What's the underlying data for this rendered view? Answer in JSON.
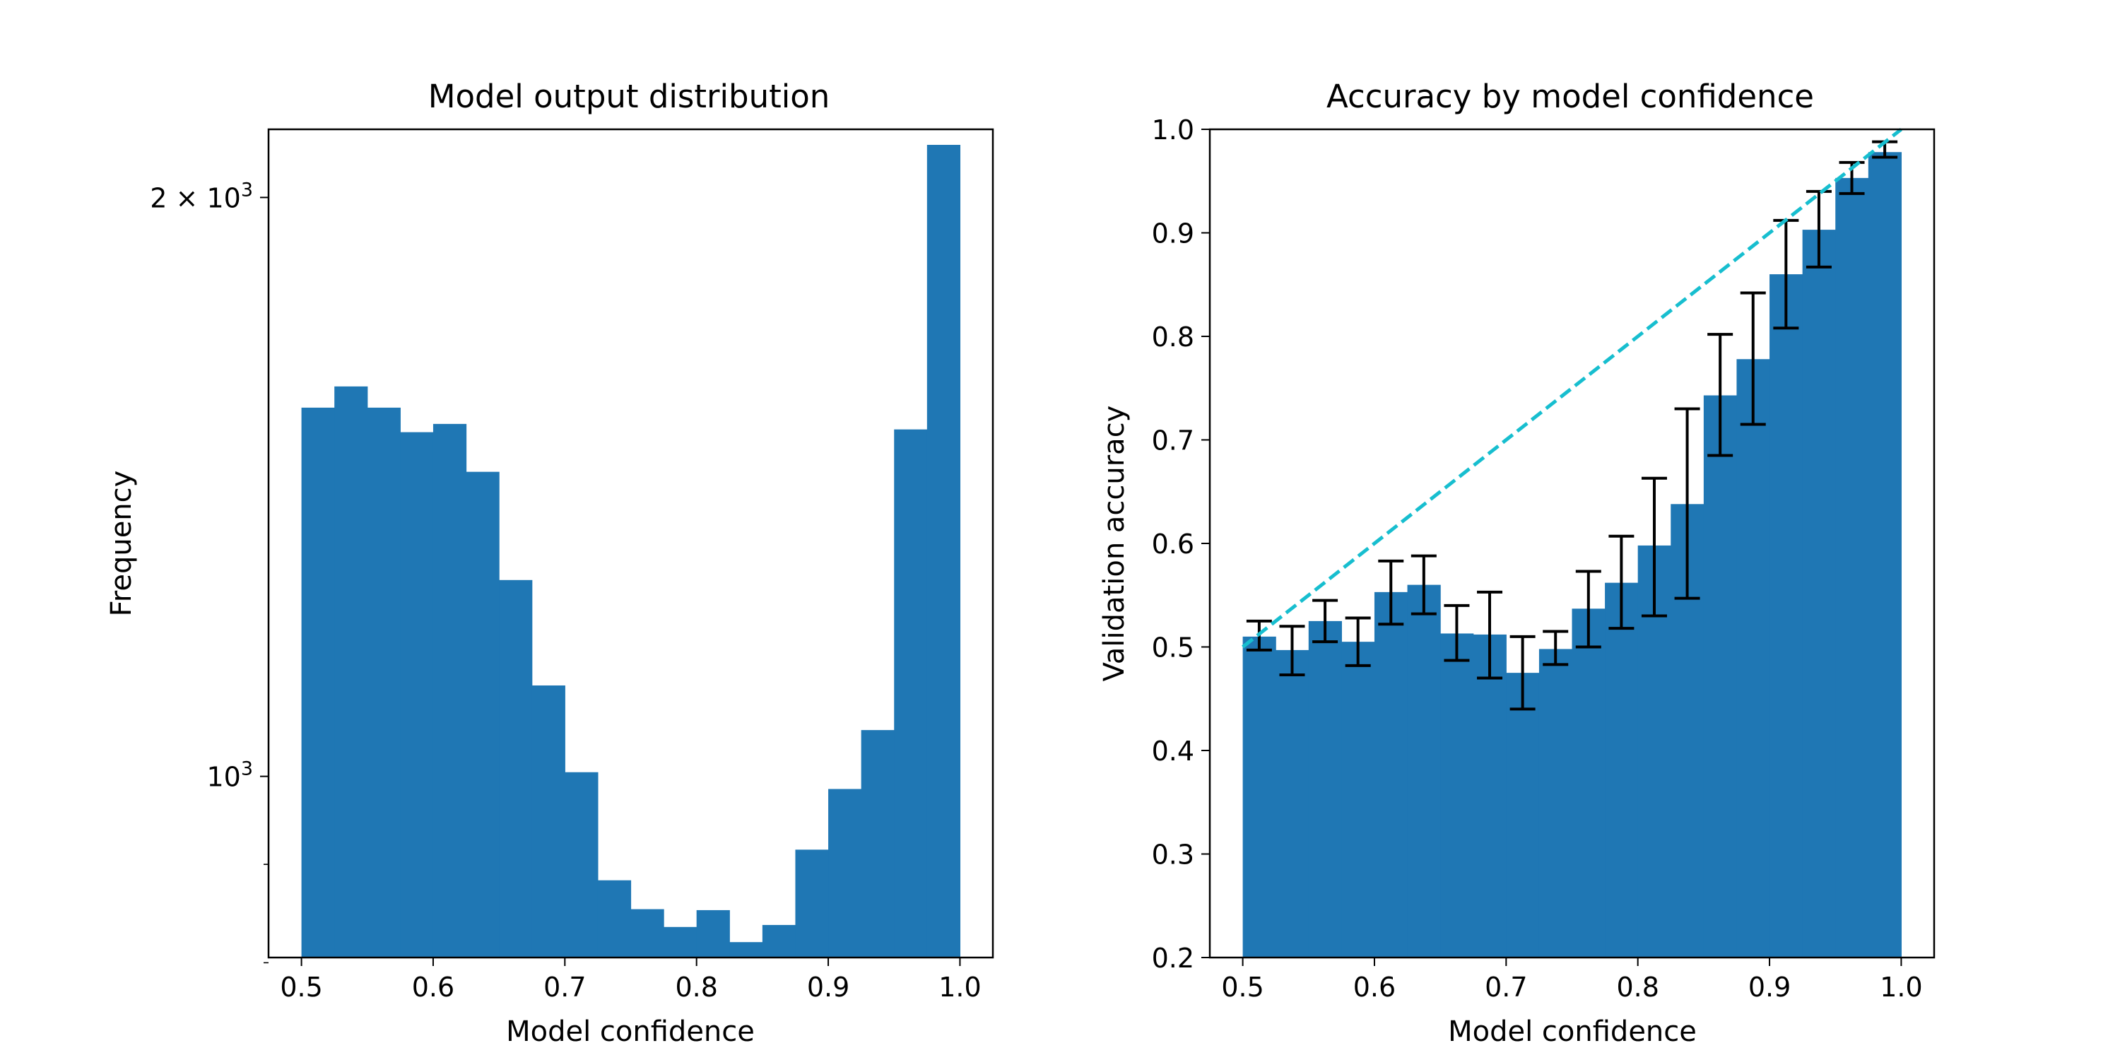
{
  "chart_data": [
    {
      "type": "bar",
      "title": "Model output distribution",
      "xlabel": "Model confidence",
      "ylabel": "Frequency",
      "yscale": "log",
      "xlim": [
        0.475,
        1.025
      ],
      "ylim": [
        805,
        2170
      ],
      "bin_width": 0.025,
      "bin_starts": [
        0.5,
        0.525,
        0.55,
        0.575,
        0.6,
        0.625,
        0.65,
        0.675,
        0.7,
        0.725,
        0.75,
        0.775,
        0.8,
        0.825,
        0.85,
        0.875,
        0.9,
        0.925,
        0.95,
        0.975
      ],
      "values": [
        1555,
        1595,
        1555,
        1510,
        1525,
        1440,
        1265,
        1115,
        1005,
        883,
        853,
        835,
        852,
        820,
        837,
        916,
        985,
        1057,
        1515,
        2130
      ],
      "color": "#1f77b4",
      "x_ticks": [
        "0.5",
        "0.6",
        "0.7",
        "0.8",
        "0.9",
        "1.0"
      ],
      "y_tick_labels": [
        {
          "value": 1000,
          "base": "10",
          "exp": "3"
        },
        {
          "value": 2000,
          "base": "2 × 10",
          "exp": "3"
        }
      ],
      "y_minor_ticks": [
        900,
        800
      ]
    },
    {
      "type": "bar",
      "title": "Accuracy by model confidence",
      "xlabel": "Model confidence",
      "ylabel": "Validation accuracy",
      "xlim": [
        0.475,
        1.025
      ],
      "ylim": [
        0.2,
        1.0
      ],
      "bin_width": 0.025,
      "bin_starts": [
        0.5,
        0.525,
        0.55,
        0.575,
        0.6,
        0.625,
        0.65,
        0.675,
        0.7,
        0.725,
        0.75,
        0.775,
        0.8,
        0.825,
        0.85,
        0.875,
        0.9,
        0.925,
        0.95,
        0.975
      ],
      "values": [
        0.51,
        0.497,
        0.525,
        0.505,
        0.553,
        0.56,
        0.513,
        0.512,
        0.475,
        0.498,
        0.537,
        0.562,
        0.598,
        0.638,
        0.743,
        0.778,
        0.86,
        0.903,
        0.953,
        0.978
      ],
      "error_low": [
        0.497,
        0.473,
        0.505,
        0.482,
        0.522,
        0.532,
        0.487,
        0.47,
        0.44,
        0.483,
        0.5,
        0.518,
        0.53,
        0.547,
        0.685,
        0.715,
        0.808,
        0.867,
        0.938,
        0.973
      ],
      "error_high": [
        0.525,
        0.52,
        0.545,
        0.528,
        0.583,
        0.588,
        0.54,
        0.553,
        0.51,
        0.515,
        0.573,
        0.607,
        0.663,
        0.73,
        0.802,
        0.842,
        0.912,
        0.94,
        0.968,
        0.988
      ],
      "color": "#1f77b4",
      "reference_line": {
        "x": [
          0.5,
          1.0
        ],
        "y": [
          0.5,
          1.0
        ],
        "color": "#17becf",
        "style": "dashed"
      },
      "x_ticks": [
        "0.5",
        "0.6",
        "0.7",
        "0.8",
        "0.9",
        "1.0"
      ],
      "y_ticks": [
        "0.2",
        "0.3",
        "0.4",
        "0.5",
        "0.6",
        "0.7",
        "0.8",
        "0.9",
        "1.0"
      ]
    }
  ]
}
